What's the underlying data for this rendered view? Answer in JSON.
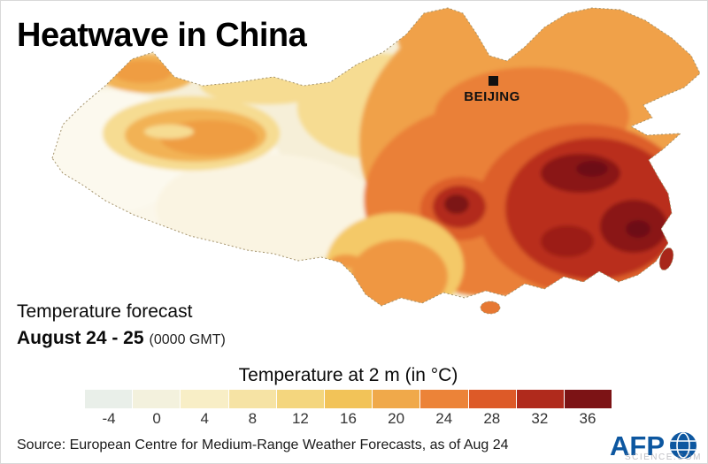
{
  "title": "Heatwave in China",
  "map": {
    "label": "China temperature forecast map",
    "city_label": "BEIJING"
  },
  "forecast": {
    "line1": "Temperature forecast",
    "dates_bold": "August 24 - 25",
    "dates_note": "(0000 GMT)"
  },
  "legend": {
    "title": "Temperature at 2 m (in °C)",
    "tick_labels": [
      "-4",
      "0",
      "4",
      "8",
      "12",
      "16",
      "20",
      "24",
      "28",
      "32",
      "36"
    ],
    "colors": [
      "#e9efe9",
      "#f3f1dd",
      "#f8eec6",
      "#f6e3a4",
      "#f4d67e",
      "#f2c358",
      "#f0a94a",
      "#ec8338",
      "#dd5a28",
      "#b02a1c",
      "#7c1315"
    ]
  },
  "source": "Source: European Centre for Medium-Range Weather Forecasts, as of Aug 24",
  "logo_text": "AFP",
  "watermark": "SCIENCE.COM"
}
